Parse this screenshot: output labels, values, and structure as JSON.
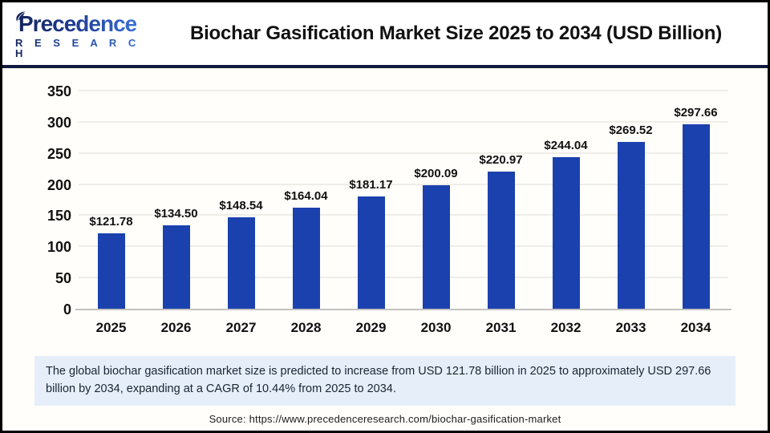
{
  "header": {
    "logo_name": "Precedence",
    "logo_subtitle": "R E S E A R C H",
    "title": "Biochar Gasification Market Size 2025 to 2034 (USD Billion)"
  },
  "chart_data": {
    "type": "bar",
    "title": "Biochar Gasification Market Size 2025 to 2034 (USD Billion)",
    "categories": [
      "2025",
      "2026",
      "2027",
      "2028",
      "2029",
      "2030",
      "2031",
      "2032",
      "2033",
      "2034"
    ],
    "values": [
      121.78,
      134.5,
      148.54,
      164.04,
      181.17,
      200.09,
      220.97,
      244.04,
      269.52,
      297.66
    ],
    "value_labels": [
      "$121.78",
      "$134.50",
      "$148.54",
      "$164.04",
      "$181.17",
      "$200.09",
      "$220.97",
      "$244.04",
      "$269.52",
      "$297.66"
    ],
    "xlabel": "",
    "ylabel": "",
    "ylim": [
      0,
      350
    ],
    "yticks": [
      0,
      50,
      100,
      150,
      200,
      250,
      300,
      350
    ],
    "grid": true,
    "legend": "none",
    "bar_color": "#1b41ae"
  },
  "summary": {
    "text": "The global biochar gasification market size is predicted to increase from USD 121.78 billion in 2025 to approximately USD 297.66 billion by 2034, expanding at a CAGR of 10.44% from 2025 to 2034."
  },
  "source": {
    "text": "Source: https://www.precedenceresearch.com/biochar-gasification-market"
  },
  "colors": {
    "bar": "#1b41ae",
    "navy_divider": "#10183f",
    "logo_navy": "#16265f",
    "logo_blue": "#3a70d6",
    "summary_bg": "#e6eff9",
    "gridline": "#efede8",
    "axis_line": "#c2c2c2",
    "chart_bg": "#fffefa"
  }
}
